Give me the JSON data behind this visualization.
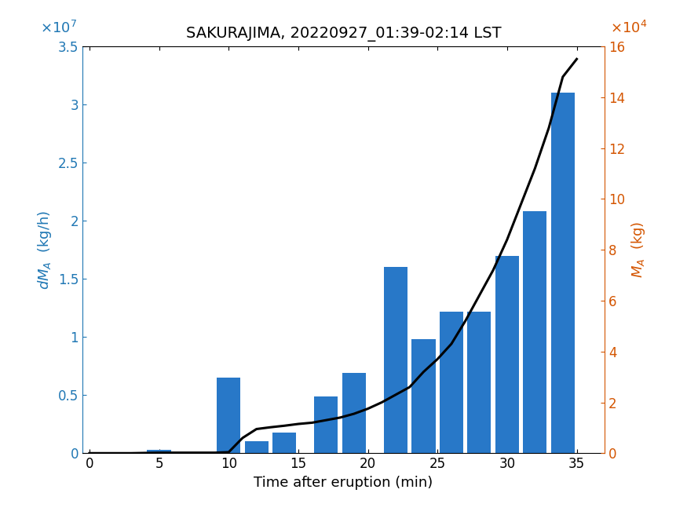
{
  "title": "SAKURAJIMA, 20220927_01:39-02:14 LST",
  "xlabel": "Time after eruption (min)",
  "bar_centers": [
    2,
    5,
    10,
    12,
    14,
    17,
    19,
    22,
    24,
    26,
    28,
    30,
    32,
    34
  ],
  "bar_heights": [
    0.0,
    300000.0,
    6500000.0,
    1000000.0,
    1800000.0,
    4900000.0,
    6900000.0,
    16000000.0,
    9800000.0,
    12200000.0,
    12200000.0,
    17000000.0,
    20800000.0,
    31000000.0
  ],
  "bar_width": 1.7,
  "bar_color": "#2878c8",
  "line_x": [
    0,
    2,
    3,
    5,
    7,
    9,
    10,
    11,
    12,
    13,
    14,
    15,
    16,
    17,
    18,
    19,
    20,
    21,
    22,
    23,
    24,
    25,
    26,
    27,
    28,
    29,
    30,
    31,
    32,
    33,
    34,
    35
  ],
  "line_y": [
    0,
    0,
    0,
    200,
    200,
    200,
    400,
    6000,
    9500,
    10200,
    10800,
    11500,
    12000,
    13000,
    14000,
    15500,
    17500,
    20000,
    23000,
    26000,
    32000,
    37000,
    43000,
    52000,
    62000,
    72000,
    84000,
    98000,
    112000,
    128000,
    148000,
    155000
  ],
  "line_color": "#000000",
  "line_width": 2.2,
  "xlim": [
    -0.5,
    37
  ],
  "ylim_left": [
    0,
    35000000.0
  ],
  "ylim_right": [
    0,
    160000.0
  ],
  "xticks": [
    0,
    5,
    10,
    15,
    20,
    25,
    30,
    35
  ],
  "yticks_left": [
    0,
    5000000.0,
    10000000.0,
    15000000.0,
    20000000.0,
    25000000.0,
    30000000.0,
    35000000.0
  ],
  "ytick_labels_left": [
    "0",
    "0.5",
    "1",
    "1.5",
    "2",
    "2.5",
    "3",
    "3.5"
  ],
  "yticks_right": [
    0,
    20000,
    40000,
    60000,
    80000,
    100000,
    120000,
    140000,
    160000
  ],
  "ytick_labels_right": [
    "0",
    "2",
    "4",
    "6",
    "8",
    "10",
    "12",
    "14",
    "16"
  ],
  "left_color": "#1f77b4",
  "right_color": "#d45500",
  "title_fontsize": 14,
  "label_fontsize": 13,
  "tick_fontsize": 12
}
